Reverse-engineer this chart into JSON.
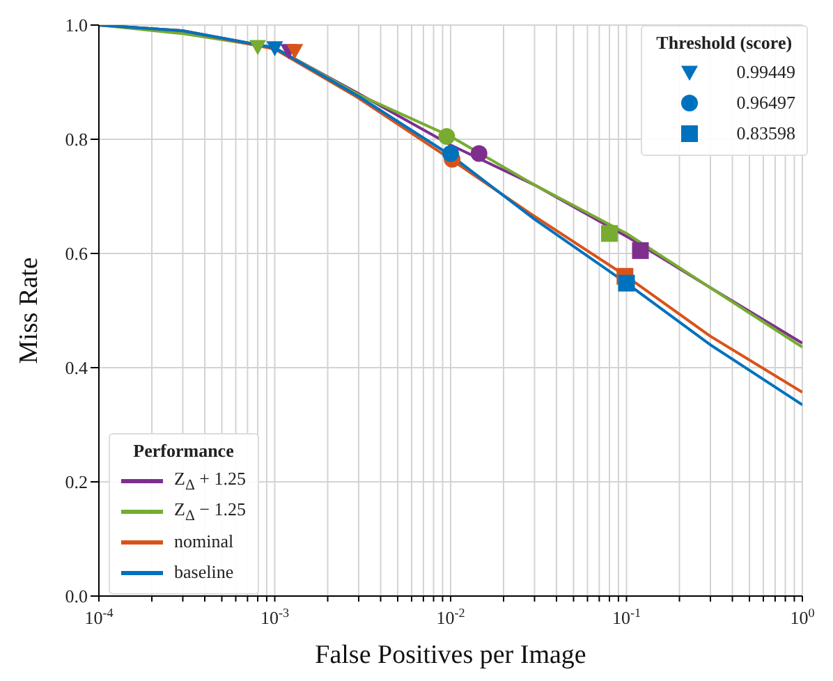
{
  "chart_data": {
    "type": "line",
    "xlabel": "False Positives per Image",
    "ylabel": "Miss Rate",
    "log": "x",
    "grid": true,
    "legend": "bottom left",
    "legend_title": "Performance",
    "annotations": [
      "Threshold (score)"
    ],
    "xlim": [
      0.0001,
      1
    ],
    "ylim": [
      0,
      1
    ],
    "xticks": [
      {
        "value": 0.0001,
        "label": "10$^{-4}$"
      },
      {
        "value": 0.0002,
        "label": null
      },
      {
        "value": 0.0003,
        "label": null
      },
      {
        "value": 0.0004,
        "label": null
      },
      {
        "value": 0.0005,
        "label": null
      },
      {
        "value": 0.0006,
        "label": null
      },
      {
        "value": 0.0007,
        "label": null
      },
      {
        "value": 0.0008,
        "label": null
      },
      {
        "value": 0.0009,
        "label": null
      },
      {
        "value": 0.001,
        "label": "10$^{-3}$"
      },
      {
        "value": 0.002,
        "label": null
      },
      {
        "value": 0.003,
        "label": null
      },
      {
        "value": 0.004,
        "label": null
      },
      {
        "value": 0.005,
        "label": null
      },
      {
        "value": 0.006,
        "label": null
      },
      {
        "value": 0.007,
        "label": null
      },
      {
        "value": 0.008,
        "label": null
      },
      {
        "value": 0.009,
        "label": null
      },
      {
        "value": 0.01,
        "label": "10$^{-2}$"
      },
      {
        "value": 0.02,
        "label": null
      },
      {
        "value": 0.03,
        "label": null
      },
      {
        "value": 0.04,
        "label": null
      },
      {
        "value": 0.05,
        "label": null
      },
      {
        "value": 0.06,
        "label": null
      },
      {
        "value": 0.07,
        "label": null
      },
      {
        "value": 0.08,
        "label": null
      },
      {
        "value": 0.09,
        "label": null
      },
      {
        "value": 0.1,
        "label": "10$^{-1}$"
      },
      {
        "value": 0.2,
        "label": null
      },
      {
        "value": 0.3,
        "label": null
      },
      {
        "value": 0.4,
        "label": null
      },
      {
        "value": 0.5,
        "label": null
      },
      {
        "value": 0.6,
        "label": null
      },
      {
        "value": 0.7,
        "label": null
      },
      {
        "value": 0.8,
        "label": null
      },
      {
        "value": 0.9,
        "label": null
      },
      {
        "value": 1,
        "label": "10$^{0}$"
      }
    ],
    "yticks": [
      {
        "value": 0,
        "label": "0.0"
      },
      {
        "value": 0.2,
        "label": "0.2"
      },
      {
        "value": 0.4,
        "label": "0.4"
      },
      {
        "value": 0.6,
        "label": "0.6"
      },
      {
        "value": 0.8,
        "label": "0.8"
      },
      {
        "value": 1,
        "label": "1.0"
      }
    ],
    "x": [
      0.0001,
      0.0003,
      0.001,
      0.003,
      0.01,
      0.03,
      0.1,
      0.3,
      1
    ],
    "series": [
      {
        "name": "Z$_{Δ}$ + 1.25",
        "color": "#7e2f8e",
        "values": [
          1.0,
          0.99,
          0.96,
          0.88,
          0.79,
          0.72,
          0.63,
          0.54,
          0.443
        ]
      },
      {
        "name": "Z$_{Δ}$ − 1.25",
        "color": "#77ac30",
        "values": [
          1.0,
          0.985,
          0.96,
          0.878,
          0.805,
          0.72,
          0.635,
          0.54,
          0.436
        ]
      },
      {
        "name": "nominal",
        "color": "#d95319",
        "values": [
          1.0,
          0.99,
          0.958,
          0.872,
          0.765,
          0.665,
          0.56,
          0.455,
          0.357
        ]
      },
      {
        "name": "baseline",
        "color": "#0072bd",
        "values": [
          1.0,
          0.99,
          0.96,
          0.875,
          0.772,
          0.66,
          0.548,
          0.44,
          0.335
        ]
      },
      {
        "name": "0.99449",
        "type": "scatter",
        "marker": "triangle",
        "color": "#0072bd",
        "x": [
          0.0012,
          0.0008,
          0.0013,
          0.001
        ],
        "values": [
          0.955,
          0.962,
          0.955,
          0.96
        ],
        "colors": [
          "#7e2f8e",
          "#77ac30",
          "#d95319",
          "#0072bd"
        ]
      },
      {
        "name": "0.96497",
        "type": "scatter",
        "marker": "circle",
        "color": "#0072bd",
        "x": [
          0.0145,
          0.0095,
          0.0102,
          0.01
        ],
        "values": [
          0.775,
          0.805,
          0.765,
          0.775
        ],
        "colors": [
          "#7e2f8e",
          "#77ac30",
          "#d95319",
          "#0072bd"
        ]
      },
      {
        "name": "0.83598",
        "type": "scatter",
        "marker": "square",
        "color": "#0072bd",
        "x": [
          0.12,
          0.08,
          0.098,
          0.1
        ],
        "values": [
          0.605,
          0.635,
          0.56,
          0.548
        ],
        "colors": [
          "#7e2f8e",
          "#77ac30",
          "#d95319",
          "#0072bd"
        ]
      }
    ]
  }
}
